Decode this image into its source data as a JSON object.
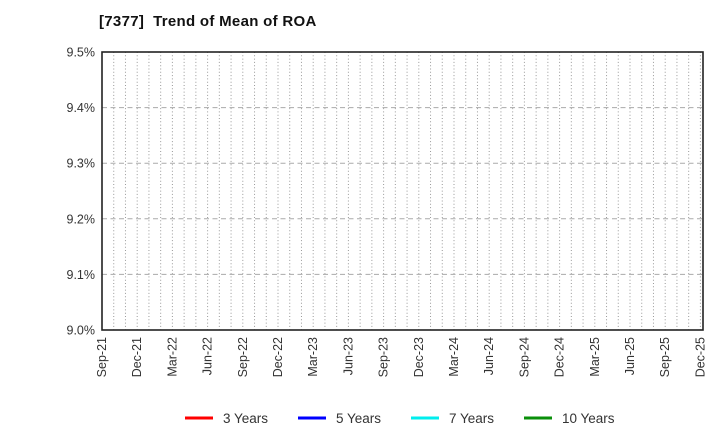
{
  "header": {
    "title": "[7377]  Trend of Mean of ROA"
  },
  "chart_data": {
    "type": "line",
    "title": "[7377]  Trend of Mean of ROA",
    "x_categories": [
      "Sep-21",
      "Dec-21",
      "Mar-22",
      "Jun-22",
      "Sep-22",
      "Dec-22",
      "Mar-23",
      "Jun-23",
      "Sep-23",
      "Dec-23",
      "Mar-24",
      "Jun-24",
      "Sep-24",
      "Dec-24",
      "Mar-25",
      "Jun-25",
      "Sep-25",
      "Dec-25"
    ],
    "xlabel": "",
    "ylabel": "",
    "ylim": [
      9.0,
      9.5
    ],
    "y_ticks": {
      "labels": [
        "9.0%",
        "9.1%",
        "9.2%",
        "9.3%",
        "9.4%",
        "9.5%"
      ],
      "values": [
        9.0,
        9.1,
        9.2,
        9.3,
        9.4,
        9.5
      ]
    },
    "series": [
      {
        "name": "3 Years",
        "color": "#ff0000",
        "values": []
      },
      {
        "name": "5 Years",
        "color": "#0000ff",
        "values": []
      },
      {
        "name": "7 Years",
        "color": "#00eeee",
        "values": []
      },
      {
        "name": "10 Years",
        "color": "#0a8f0a",
        "values": []
      }
    ],
    "grid": {
      "horizontal": "dashed",
      "vertical": "dotted",
      "vertical_minor_per_category": 3
    },
    "legend_position": "bottom",
    "plot_is_empty": true
  }
}
